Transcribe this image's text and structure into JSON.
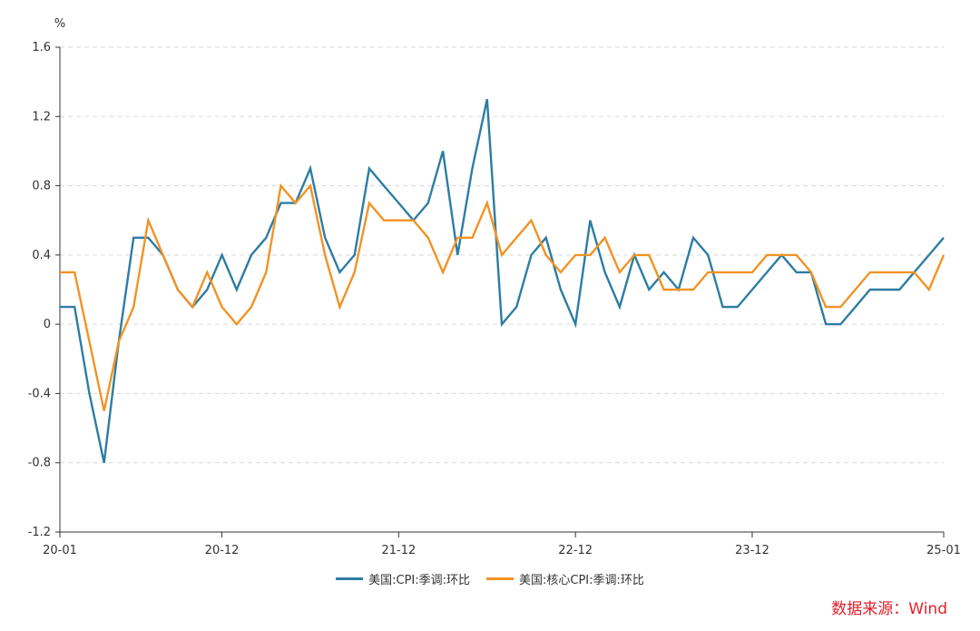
{
  "chart_data": {
    "type": "line",
    "unit": "%",
    "ylim": [
      -1.2,
      1.6
    ],
    "y_ticks": [
      1.6,
      1.2,
      0.8,
      0.4,
      0,
      -0.4,
      -0.8,
      -1.2
    ],
    "y_tick_labels": [
      "1.6",
      "1.2",
      "0.8",
      "0.4",
      "0",
      "-0.4",
      "-0.8",
      "-1.2"
    ],
    "x_start": "20-01",
    "x_tick_labels": [
      "20-01",
      "20-12",
      "21-12",
      "22-12",
      "23-12",
      "25-01"
    ],
    "x_tick_positions": [
      "20-01",
      "20-12",
      "21-12",
      "22-12",
      "23-12",
      "25-01"
    ],
    "grid": "horizontal dashed",
    "legend_position": "bottom-center",
    "series": [
      {
        "name": "美国:CPI:季调:环比",
        "color": "#2e7ca3",
        "values": [
          0.1,
          0.1,
          -0.4,
          -0.8,
          -0.1,
          0.5,
          0.5,
          0.4,
          0.2,
          0.1,
          0.2,
          0.4,
          0.2,
          0.4,
          0.5,
          0.7,
          0.7,
          0.9,
          0.5,
          0.3,
          0.4,
          0.9,
          0.8,
          0.7,
          0.6,
          0.7,
          1.0,
          0.4,
          0.9,
          1.3,
          0.0,
          0.1,
          0.4,
          0.5,
          0.2,
          0.0,
          0.6,
          0.3,
          0.1,
          0.4,
          0.2,
          0.3,
          0.2,
          0.5,
          0.4,
          0.1,
          0.1,
          0.2,
          0.3,
          0.4,
          0.3,
          0.3,
          0.0,
          0.0,
          0.1,
          0.2,
          0.2,
          0.2,
          0.3,
          0.4,
          0.5
        ]
      },
      {
        "name": "美国:核心CPI:季调:环比",
        "color": "#f29325",
        "values": [
          0.3,
          0.3,
          -0.1,
          -0.5,
          -0.1,
          0.1,
          0.6,
          0.4,
          0.2,
          0.1,
          0.3,
          0.1,
          0.0,
          0.1,
          0.3,
          0.8,
          0.7,
          0.8,
          0.4,
          0.1,
          0.3,
          0.7,
          0.6,
          0.6,
          0.6,
          0.5,
          0.3,
          0.5,
          0.5,
          0.7,
          0.4,
          0.5,
          0.6,
          0.4,
          0.3,
          0.4,
          0.4,
          0.5,
          0.3,
          0.4,
          0.4,
          0.2,
          0.2,
          0.2,
          0.3,
          0.3,
          0.3,
          0.3,
          0.4,
          0.4,
          0.4,
          0.3,
          0.1,
          0.1,
          0.2,
          0.3,
          0.3,
          0.3,
          0.3,
          0.2,
          0.4
        ]
      }
    ]
  },
  "source_text": "数据来源：Wind"
}
